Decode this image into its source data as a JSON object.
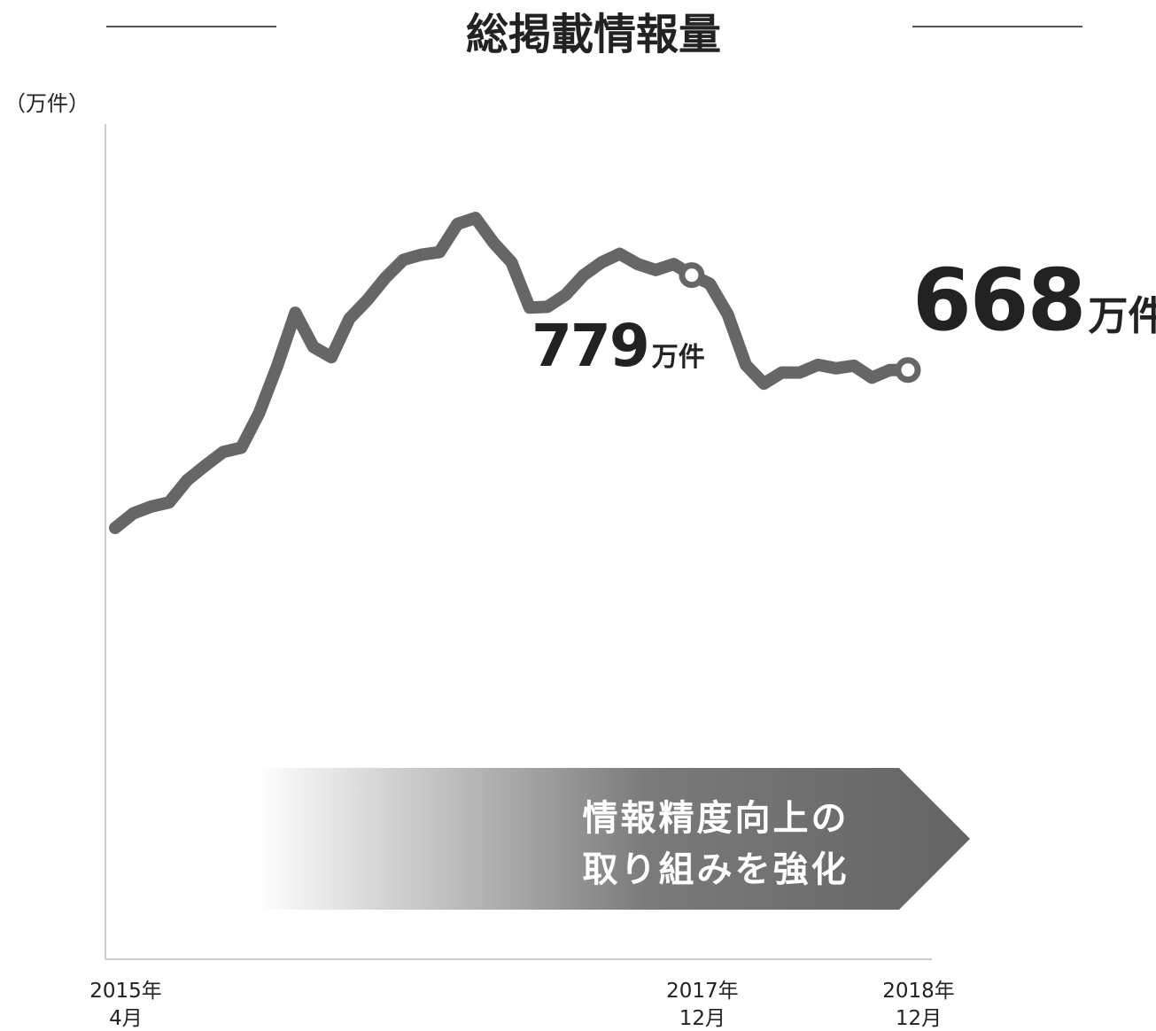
{
  "chart_data": {
    "type": "line",
    "title": "総掲載情報量",
    "ylabel": "（万件）",
    "categories": [
      [
        "2015年",
        "4月"
      ],
      null,
      null,
      null,
      null,
      null,
      null,
      null,
      null,
      null,
      null,
      null,
      null,
      null,
      null,
      null,
      null,
      null,
      null,
      null,
      null,
      null,
      null,
      null,
      null,
      null,
      null,
      null,
      null,
      null,
      null,
      null,
      [
        "2017年",
        "12月"
      ],
      null,
      null,
      null,
      null,
      null,
      null,
      null,
      null,
      null,
      null,
      null,
      [
        "2018年",
        "12月"
      ]
    ],
    "series": [
      {
        "name": "総掲載情報量",
        "color": "#666666",
        "values": [
          483,
          500,
          508,
          513,
          539,
          556,
          572,
          577,
          618,
          673,
          735,
          695,
          683,
          728,
          750,
          776,
          797,
          803,
          806,
          839,
          846,
          817,
          794,
          741,
          742,
          756,
          779,
          794,
          804,
          792,
          785,
          792,
          779,
          769,
          733,
          674,
          652,
          665,
          665,
          674,
          670,
          673,
          659,
          668,
          668
        ]
      }
    ],
    "value_unit": "万件",
    "ylim": [
      -22,
      956
    ],
    "annotation": [
      "情報精度向上の",
      "取り組みを強化"
    ]
  }
}
